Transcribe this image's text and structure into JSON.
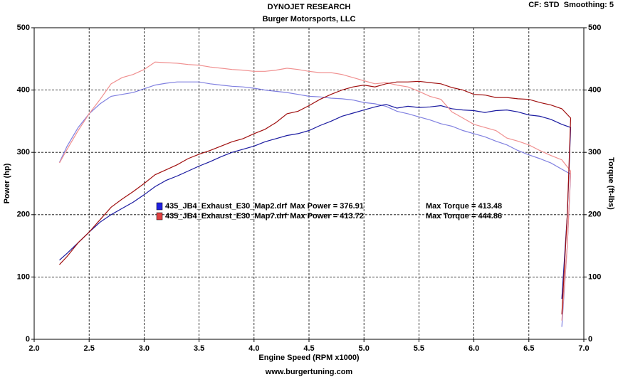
{
  "chart_data": {
    "type": "line",
    "title": "DYNOJET RESEARCH",
    "subtitle": "Burger Motorsports, LLC",
    "corner_note": "CF: STD  Smoothing: 5",
    "footer": "www.burgertuning.com",
    "x_label": "Engine Speed (RPM x1000)",
    "y_label": "Power (hp)",
    "y2_label": "Torque (ft-lbs)",
    "xlim": [
      2.0,
      7.0
    ],
    "xticks": [
      {
        "value": 2.0,
        "label": "2.0"
      },
      {
        "value": 2.5,
        "label": "2.5"
      },
      {
        "value": 3.0,
        "label": "3.0"
      },
      {
        "value": 3.5,
        "label": "3.5"
      },
      {
        "value": 4.0,
        "label": "4.0"
      },
      {
        "value": 4.5,
        "label": "4.5"
      },
      {
        "value": 5.0,
        "label": "5.0"
      },
      {
        "value": 5.5,
        "label": "5.5"
      },
      {
        "value": 6.0,
        "label": "6.0"
      },
      {
        "value": 6.5,
        "label": "6.5"
      },
      {
        "value": 7.0,
        "label": "7.0"
      }
    ],
    "ylim": [
      0,
      500
    ],
    "yticks": [
      0,
      100,
      200,
      300,
      400,
      500
    ],
    "y2lim": [
      0,
      500
    ],
    "y2ticks": [
      0,
      100,
      200,
      300,
      400,
      500
    ],
    "grid": true,
    "x": [
      2.23,
      2.3,
      2.4,
      2.5,
      2.6,
      2.7,
      2.8,
      2.9,
      3.0,
      3.1,
      3.2,
      3.3,
      3.4,
      3.5,
      3.6,
      3.7,
      3.8,
      3.9,
      4.0,
      4.1,
      4.2,
      4.3,
      4.4,
      4.5,
      4.6,
      4.7,
      4.8,
      4.9,
      5.0,
      5.1,
      5.2,
      5.3,
      5.4,
      5.5,
      5.6,
      5.7,
      5.8,
      5.9,
      6.0,
      6.1,
      6.2,
      6.3,
      6.4,
      6.5,
      6.6,
      6.7,
      6.8,
      6.88,
      6.85,
      6.8
    ],
    "series": [
      {
        "name": "435_JB4_Exhaust_E30_Map2.drf",
        "max_power": "Max Power = 376.91",
        "max_torque": "Max Torque = 413.48",
        "color": "#1a1aa0",
        "torque_color": "#8080e0",
        "legend_color": "#2020e0",
        "values": [
          127,
          138,
          155,
          172,
          188,
          200,
          210,
          220,
          232,
          245,
          255,
          262,
          270,
          278,
          285,
          293,
          300,
          305,
          310,
          317,
          322,
          327,
          330,
          335,
          343,
          350,
          358,
          363,
          368,
          373,
          377,
          371,
          374,
          372,
          373,
          375,
          370,
          368,
          367,
          364,
          367,
          368,
          365,
          360,
          358,
          353,
          345,
          340,
          200,
          65
        ],
        "torque": [
          284,
          310,
          340,
          362,
          378,
          390,
          393,
          396,
          402,
          408,
          411,
          413,
          413,
          413,
          410,
          408,
          406,
          405,
          403,
          400,
          398,
          396,
          393,
          390,
          389,
          387,
          386,
          384,
          380,
          378,
          374,
          366,
          362,
          357,
          352,
          346,
          342,
          335,
          330,
          325,
          318,
          312,
          303,
          296,
          290,
          283,
          273,
          265,
          150,
          20
        ]
      },
      {
        "name": "435_JB4_Exhaust_E30_Map7.drf",
        "max_power": "Max Power = 413.72",
        "max_torque": "Max Torque = 444.86",
        "color": "#a01010",
        "torque_color": "#f09090",
        "legend_color": "#e04040",
        "values": [
          120,
          133,
          155,
          172,
          192,
          212,
          225,
          237,
          250,
          264,
          272,
          280,
          290,
          297,
          303,
          310,
          317,
          322,
          330,
          337,
          348,
          362,
          366,
          375,
          385,
          393,
          400,
          405,
          408,
          405,
          410,
          413,
          413,
          414,
          412,
          410,
          404,
          400,
          393,
          392,
          388,
          388,
          386,
          385,
          380,
          376,
          370,
          355,
          200,
          40
        ],
        "torque": [
          283,
          305,
          335,
          362,
          385,
          410,
          420,
          425,
          433,
          445,
          444,
          443,
          441,
          440,
          437,
          435,
          433,
          432,
          430,
          430,
          432,
          435,
          433,
          430,
          428,
          428,
          425,
          420,
          415,
          410,
          412,
          408,
          405,
          398,
          390,
          385,
          365,
          355,
          345,
          340,
          335,
          323,
          318,
          312,
          303,
          295,
          288,
          270,
          150,
          30
        ]
      }
    ]
  }
}
